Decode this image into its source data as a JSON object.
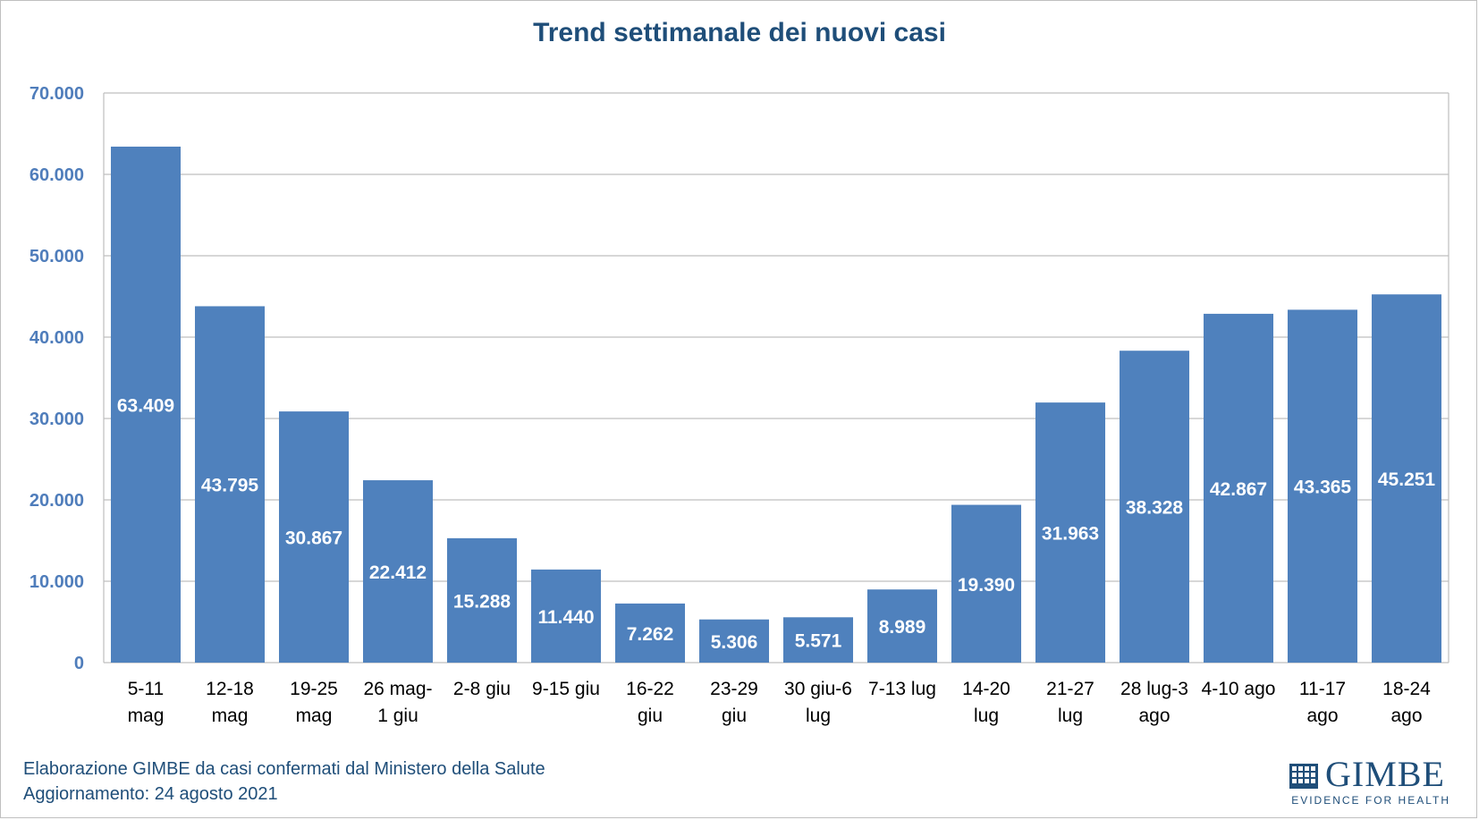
{
  "chart_data": {
    "type": "bar",
    "title": "Trend settimanale dei nuovi casi",
    "categories": [
      [
        "5-11",
        "mag"
      ],
      [
        "12-18",
        "mag"
      ],
      [
        "19-25",
        "mag"
      ],
      [
        "26 mag-",
        "1 giu"
      ],
      [
        "2-8 giu"
      ],
      [
        "9-15 giu"
      ],
      [
        "16-22",
        "giu"
      ],
      [
        "23-29",
        "giu"
      ],
      [
        "30 giu-6",
        "lug"
      ],
      [
        "7-13 lug"
      ],
      [
        "14-20",
        "lug"
      ],
      [
        "21-27",
        "lug"
      ],
      [
        "28 lug-3",
        "ago"
      ],
      [
        "4-10 ago"
      ],
      [
        "11-17",
        "ago"
      ],
      [
        "18-24",
        "ago"
      ]
    ],
    "values": [
      63409,
      43795,
      30867,
      22412,
      15288,
      11440,
      7262,
      5306,
      5571,
      8989,
      19390,
      31963,
      38328,
      42867,
      43365,
      45251
    ],
    "value_labels": [
      "63.409",
      "43.795",
      "30.867",
      "22.412",
      "15.288",
      "11.440",
      "7.262",
      "5.306",
      "5.571",
      "8.989",
      "19.390",
      "31.963",
      "38.328",
      "42.867",
      "43.365",
      "45.251"
    ],
    "yticks": [
      0,
      10000,
      20000,
      30000,
      40000,
      50000,
      60000,
      70000
    ],
    "ytick_labels": [
      "0",
      "10.000",
      "20.000",
      "30.000",
      "40.000",
      "50.000",
      "60.000",
      "70.000"
    ],
    "ylim": [
      0,
      70000
    ],
    "grid": true,
    "bar_color": "#4f81bd",
    "xlabel": "",
    "ylabel": ""
  },
  "footer": {
    "line1": "Elaborazione GIMBE da casi confermati dal Ministero della Salute",
    "line2": "Aggiornamento: 24 agosto 2021"
  },
  "logo": {
    "name": "GIMBE",
    "tagline": "EVIDENCE FOR HEALTH",
    "icon": "gimbe-logo-icon"
  },
  "colors": {
    "title": "#1f4e79",
    "axis_labels": "#4f7dbb",
    "bars": "#4f81bd",
    "grid": "#bfbfbf"
  }
}
